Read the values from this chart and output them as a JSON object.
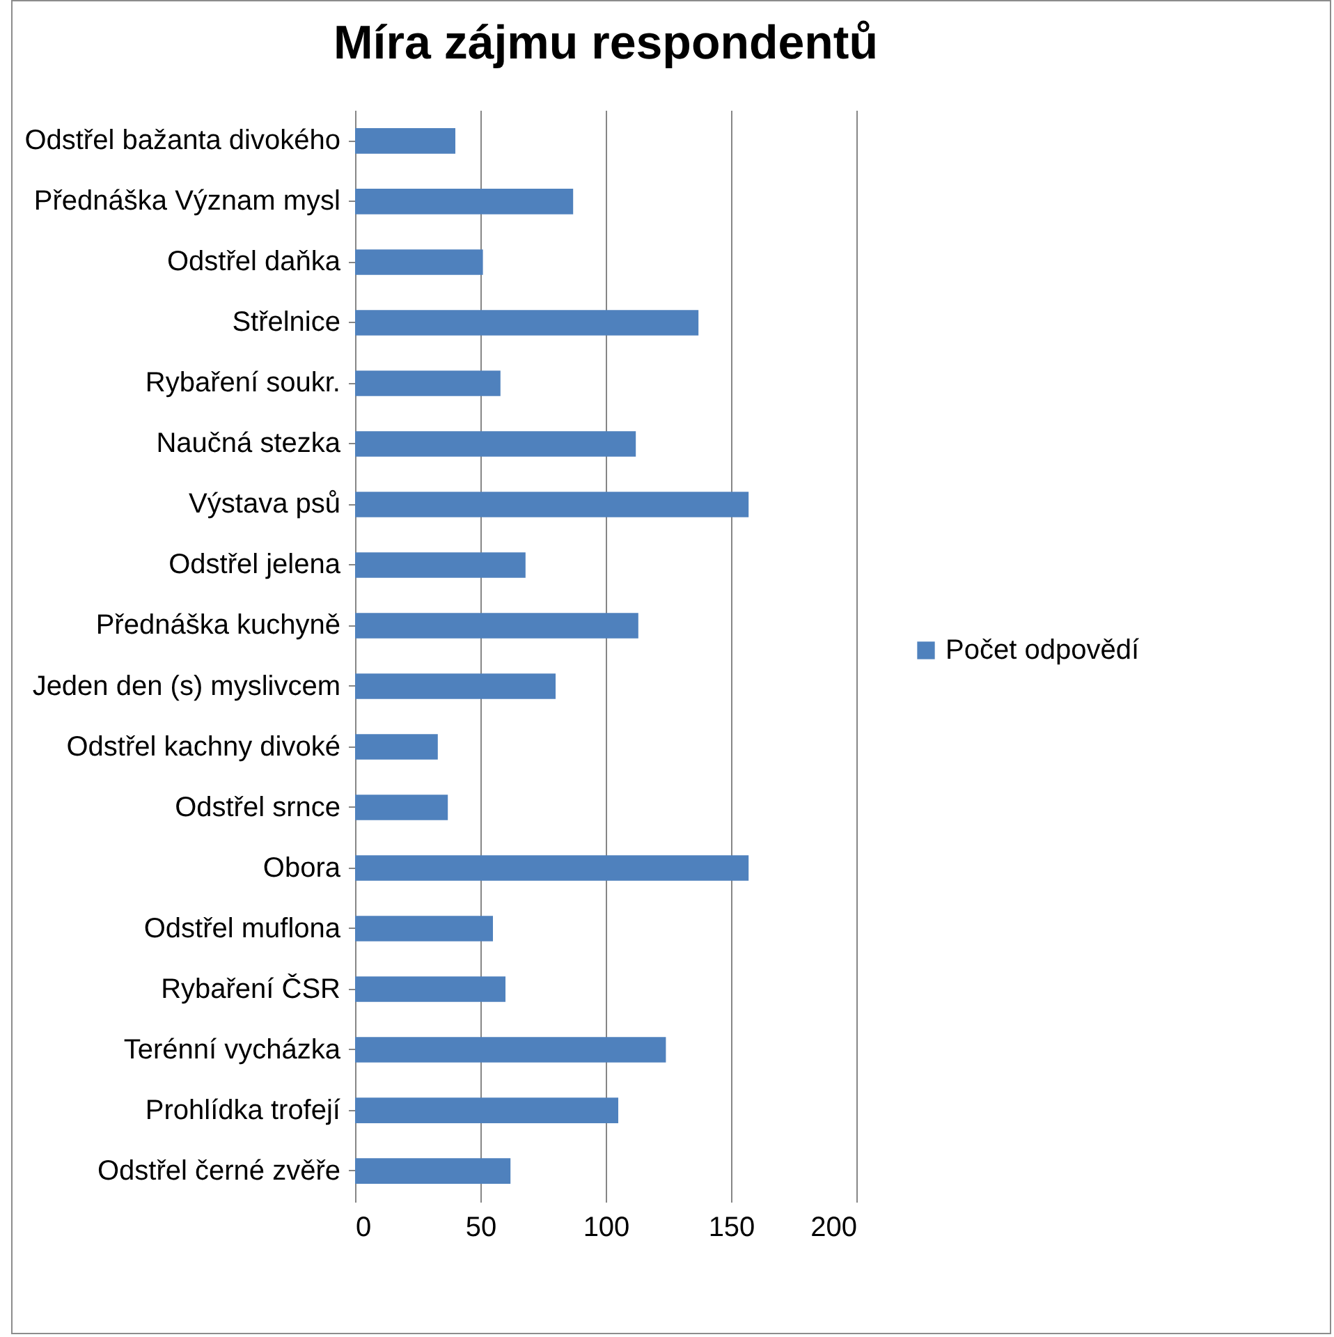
{
  "chart_data": {
    "type": "bar",
    "orientation": "horizontal",
    "title": "Míra zájmu respondentů",
    "categories": [
      "Odstřel bažanta divokého",
      "Přednáška Význam mysl",
      "Odstřel daňka",
      "Střelnice",
      "Rybaření soukr.",
      "Naučná stezka",
      "Výstava psů",
      "Odstřel jelena",
      "Přednáška kuchyně",
      "Jeden den (s) myslivcem",
      "Odstřel kachny divoké",
      "Odstřel srnce",
      "Obora",
      "Odstřel muflona",
      "Rybaření ČSR",
      "Terénní vycházka",
      "Prohlídka trofejí",
      "Odstřel černé zvěře"
    ],
    "series": [
      {
        "name": "Počet odpovědí",
        "color": "#4f81bd",
        "values": [
          40,
          87,
          51,
          137,
          58,
          112,
          157,
          68,
          113,
          80,
          33,
          37,
          157,
          55,
          60,
          124,
          105,
          62
        ]
      }
    ],
    "xlim": [
      0,
      200
    ],
    "xticks": [
      0,
      50,
      100,
      150,
      200
    ],
    "grid": "x",
    "legend": "right"
  }
}
